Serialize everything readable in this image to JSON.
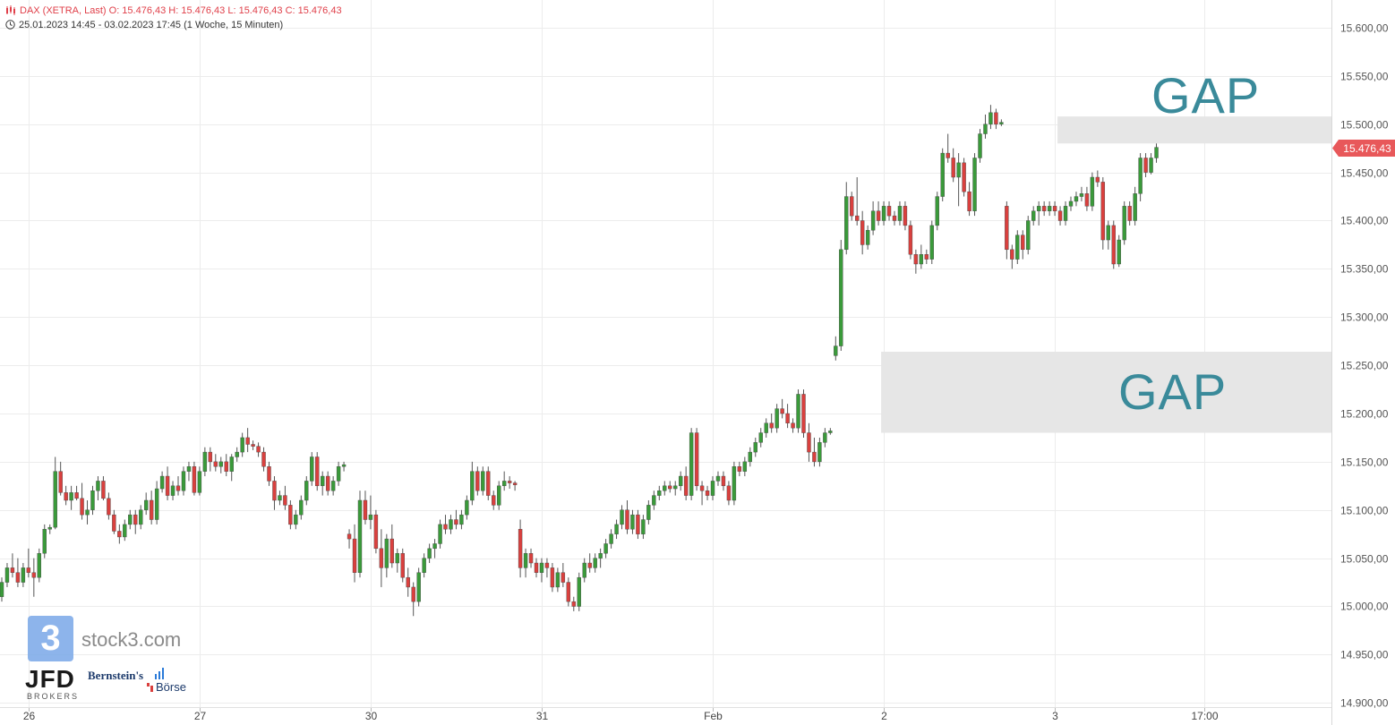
{
  "header": {
    "line1": "DAX (XETRA, Last)  O: 15.476,43  H: 15.476,43  L: 15.476,43  C: 15.476,43",
    "line2": "25.01.2023 14:45 - 03.02.2023 17:45   (1 Woche, 15 Minuten)"
  },
  "annotations": {
    "gap_upper": "GAP",
    "gap_lower": "GAP"
  },
  "logos": {
    "stock3_glyph": "3",
    "stock3_text": "stock3.com",
    "jfd": "JFD",
    "jfd_sub": "BROKERS",
    "bernstein": "Bernstein's",
    "boerse": "Börse"
  },
  "colors": {
    "up": "#3a9a3a",
    "down": "#d9403e",
    "last_price_bg": "#e8585a",
    "gap_fill": "#e6e6e6",
    "gap_text": "#3a8a9a"
  },
  "chart_data": {
    "type": "candlestick",
    "title": "DAX (XETRA, Last)",
    "last_price_label": "15.476,43",
    "ylim": [
      14890,
      15620
    ],
    "y_ticks": [
      {
        "value": 15600,
        "label": "15.600,00"
      },
      {
        "value": 15550,
        "label": "15.550,00"
      },
      {
        "value": 15500,
        "label": "15.500,00"
      },
      {
        "value": 15450,
        "label": "15.450,00"
      },
      {
        "value": 15400,
        "label": "15.400,00"
      },
      {
        "value": 15350,
        "label": "15.350,00"
      },
      {
        "value": 15300,
        "label": "15.300,00"
      },
      {
        "value": 15250,
        "label": "15.250,00"
      },
      {
        "value": 15200,
        "label": "15.200,00"
      },
      {
        "value": 15150,
        "label": "15.150,00"
      },
      {
        "value": 15100,
        "label": "15.100,00"
      },
      {
        "value": 15050,
        "label": "15.050,00"
      },
      {
        "value": 15000,
        "label": "15.000,00"
      },
      {
        "value": 14950,
        "label": "14.950,00"
      },
      {
        "value": 14900,
        "label": "14.900,00"
      }
    ],
    "x_ticks": [
      {
        "label": "26",
        "index": 5
      },
      {
        "label": "27",
        "index": 37
      },
      {
        "label": "30",
        "index": 69
      },
      {
        "label": "31",
        "index": 101
      },
      {
        "label": "Feb",
        "index": 133
      },
      {
        "label": "2",
        "index": 165
      },
      {
        "label": "3",
        "index": 197
      },
      {
        "label": "17:00",
        "index": 225
      }
    ],
    "gaps": [
      {
        "label": "GAP",
        "from_index": 197.5,
        "low": 15480,
        "high": 15508
      },
      {
        "label": "GAP",
        "from_index": 164.5,
        "low": 15180,
        "high": 15264
      }
    ],
    "candles": [
      [
        15010,
        15030,
        15005,
        15025
      ],
      [
        15025,
        15045,
        15020,
        15040
      ],
      [
        15040,
        15055,
        15030,
        15035
      ],
      [
        15035,
        15050,
        15020,
        15025
      ],
      [
        15025,
        15045,
        15020,
        15040
      ],
      [
        15040,
        15060,
        15030,
        15035
      ],
      [
        15035,
        15050,
        15010,
        15030
      ],
      [
        15030,
        15060,
        15025,
        15055
      ],
      [
        15055,
        15085,
        15050,
        15080
      ],
      [
        15080,
        15085,
        15075,
        15082
      ],
      [
        15082,
        15155,
        15080,
        15140
      ],
      [
        15140,
        15150,
        15115,
        15118
      ],
      [
        15118,
        15125,
        15105,
        15110
      ],
      [
        15110,
        15125,
        15100,
        15118
      ],
      [
        15118,
        15125,
        15110,
        15112
      ],
      [
        15112,
        15128,
        15090,
        15095
      ],
      [
        15095,
        15110,
        15085,
        15100
      ],
      [
        15100,
        15125,
        15095,
        15120
      ],
      [
        15120,
        15135,
        15110,
        15130
      ],
      [
        15130,
        15135,
        15110,
        15112
      ],
      [
        15112,
        15118,
        15090,
        15095
      ],
      [
        15095,
        15100,
        15075,
        15078
      ],
      [
        15078,
        15085,
        15065,
        15072
      ],
      [
        15072,
        15090,
        15068,
        15085
      ],
      [
        15085,
        15100,
        15080,
        15095
      ],
      [
        15095,
        15100,
        15075,
        15085
      ],
      [
        15085,
        15105,
        15080,
        15100
      ],
      [
        15100,
        15118,
        15095,
        15110
      ],
      [
        15110,
        15120,
        15085,
        15090
      ],
      [
        15090,
        15130,
        15085,
        15122
      ],
      [
        15122,
        15140,
        15118,
        15135
      ],
      [
        15135,
        15145,
        15110,
        15115
      ],
      [
        15115,
        15130,
        15110,
        15125
      ],
      [
        15125,
        15135,
        15115,
        15120
      ],
      [
        15120,
        15145,
        15115,
        15140
      ],
      [
        15140,
        15150,
        15130,
        15145
      ],
      [
        15145,
        15150,
        15115,
        15118
      ],
      [
        15118,
        15145,
        15115,
        15140
      ],
      [
        15140,
        15165,
        15135,
        15160
      ],
      [
        15160,
        15165,
        15140,
        15150
      ],
      [
        15150,
        15158,
        15140,
        15145
      ],
      [
        15145,
        15155,
        15138,
        15150
      ],
      [
        15150,
        15158,
        15135,
        15140
      ],
      [
        15140,
        15158,
        15130,
        15155
      ],
      [
        15155,
        15165,
        15150,
        15160
      ],
      [
        15160,
        15180,
        15155,
        15175
      ],
      [
        15175,
        15185,
        15160,
        15168
      ],
      [
        15168,
        15172,
        15162,
        15166
      ],
      [
        15166,
        15170,
        15155,
        15160
      ],
      [
        15160,
        15165,
        15140,
        15145
      ],
      [
        15145,
        15150,
        15125,
        15130
      ],
      [
        15130,
        15135,
        15100,
        15110
      ],
      [
        15110,
        15120,
        15105,
        15115
      ],
      [
        15115,
        15125,
        15100,
        15105
      ],
      [
        15105,
        15110,
        15080,
        15085
      ],
      [
        15085,
        15100,
        15080,
        15095
      ],
      [
        15095,
        15115,
        15090,
        15110
      ],
      [
        15110,
        15135,
        15105,
        15130
      ],
      [
        15130,
        15160,
        15125,
        15155
      ],
      [
        15155,
        15160,
        15120,
        15125
      ],
      [
        15125,
        15140,
        15115,
        15135
      ],
      [
        15135,
        15140,
        15115,
        15120
      ],
      [
        15120,
        15135,
        15115,
        15130
      ],
      [
        15130,
        15150,
        15125,
        15145
      ],
      [
        15145,
        15150,
        15140,
        15147
      ],
      [
        15075,
        15080,
        15060,
        15070
      ],
      [
        15070,
        15085,
        15025,
        15035
      ],
      [
        15035,
        15120,
        15030,
        15110
      ],
      [
        15110,
        15120,
        15085,
        15090
      ],
      [
        15090,
        15115,
        15080,
        15095
      ],
      [
        15095,
        15100,
        15055,
        15060
      ],
      [
        15060,
        15080,
        15020,
        15040
      ],
      [
        15040,
        15075,
        15030,
        15070
      ],
      [
        15070,
        15085,
        15040,
        15045
      ],
      [
        15045,
        15060,
        15035,
        15055
      ],
      [
        15055,
        15060,
        15025,
        15030
      ],
      [
        15030,
        15040,
        15010,
        15020
      ],
      [
        15020,
        15025,
        14990,
        15005
      ],
      [
        15005,
        15040,
        15000,
        15035
      ],
      [
        15035,
        15055,
        15030,
        15050
      ],
      [
        15050,
        15065,
        15045,
        15060
      ],
      [
        15060,
        15070,
        15050,
        15065
      ],
      [
        15065,
        15090,
        15060,
        15085
      ],
      [
        15085,
        15095,
        15075,
        15080
      ],
      [
        15080,
        15095,
        15075,
        15090
      ],
      [
        15090,
        15100,
        15080,
        15085
      ],
      [
        15085,
        15100,
        15080,
        15095
      ],
      [
        15095,
        15115,
        15090,
        15110
      ],
      [
        15110,
        15150,
        15105,
        15140
      ],
      [
        15140,
        15145,
        15115,
        15120
      ],
      [
        15120,
        15145,
        15115,
        15140
      ],
      [
        15140,
        15145,
        15110,
        15115
      ],
      [
        15115,
        15120,
        15100,
        15105
      ],
      [
        15105,
        15130,
        15100,
        15125
      ],
      [
        15125,
        15140,
        15120,
        15130
      ],
      [
        15130,
        15135,
        15122,
        15128
      ],
      [
        15128,
        15130,
        15120,
        15126
      ],
      [
        15080,
        15090,
        15030,
        15040
      ],
      [
        15040,
        15060,
        15030,
        15055
      ],
      [
        15055,
        15060,
        15040,
        15045
      ],
      [
        15045,
        15050,
        15030,
        15035
      ],
      [
        15035,
        15050,
        15025,
        15045
      ],
      [
        15045,
        15050,
        15030,
        15040
      ],
      [
        15040,
        15045,
        15015,
        15020
      ],
      [
        15020,
        15040,
        15015,
        15035
      ],
      [
        15035,
        15045,
        15020,
        15025
      ],
      [
        15025,
        15030,
        15000,
        15005
      ],
      [
        15005,
        15010,
        14995,
        15000
      ],
      [
        15000,
        15035,
        14995,
        15030
      ],
      [
        15030,
        15050,
        15025,
        15045
      ],
      [
        15045,
        15055,
        15035,
        15040
      ],
      [
        15040,
        15055,
        15035,
        15050
      ],
      [
        15050,
        15060,
        15040,
        15055
      ],
      [
        15055,
        15070,
        15050,
        15065
      ],
      [
        15065,
        15080,
        15060,
        15075
      ],
      [
        15075,
        15090,
        15070,
        15085
      ],
      [
        15085,
        15105,
        15080,
        15100
      ],
      [
        15100,
        15110,
        15075,
        15080
      ],
      [
        15080,
        15100,
        15075,
        15095
      ],
      [
        15095,
        15100,
        15070,
        15075
      ],
      [
        15075,
        15095,
        15070,
        15090
      ],
      [
        15090,
        15110,
        15085,
        15105
      ],
      [
        15105,
        15120,
        15100,
        15115
      ],
      [
        15115,
        15125,
        15110,
        15120
      ],
      [
        15120,
        15130,
        15115,
        15125
      ],
      [
        15125,
        15130,
        15118,
        15122
      ],
      [
        15122,
        15130,
        15115,
        15125
      ],
      [
        15125,
        15140,
        15120,
        15135
      ],
      [
        15135,
        15145,
        15110,
        15115
      ],
      [
        15115,
        15185,
        15110,
        15180
      ],
      [
        15180,
        15185,
        15120,
        15125
      ],
      [
        15125,
        15130,
        15105,
        15120
      ],
      [
        15120,
        15125,
        15110,
        15115
      ],
      [
        15115,
        15135,
        15110,
        15130
      ],
      [
        15130,
        15140,
        15125,
        15135
      ],
      [
        15135,
        15140,
        15120,
        15125
      ],
      [
        15125,
        15130,
        15105,
        15110
      ],
      [
        15110,
        15150,
        15105,
        15145
      ],
      [
        15145,
        15150,
        15135,
        15140
      ],
      [
        15140,
        15155,
        15135,
        15150
      ],
      [
        15150,
        15165,
        15145,
        15160
      ],
      [
        15160,
        15175,
        15155,
        15170
      ],
      [
        15170,
        15185,
        15165,
        15180
      ],
      [
        15180,
        15195,
        15175,
        15190
      ],
      [
        15190,
        15200,
        15180,
        15185
      ],
      [
        15185,
        15210,
        15180,
        15205
      ],
      [
        15205,
        15215,
        15195,
        15200
      ],
      [
        15200,
        15210,
        15185,
        15190
      ],
      [
        15190,
        15195,
        15180,
        15185
      ],
      [
        15185,
        15225,
        15180,
        15220
      ],
      [
        15220,
        15225,
        15175,
        15180
      ],
      [
        15180,
        15190,
        15150,
        15160
      ],
      [
        15160,
        15175,
        15145,
        15150
      ],
      [
        15150,
        15175,
        15145,
        15170
      ],
      [
        15170,
        15185,
        15165,
        15180
      ],
      [
        15180,
        15185,
        15178,
        15182
      ],
      [
        15260,
        15280,
        15255,
        15270
      ],
      [
        15270,
        15380,
        15265,
        15370
      ],
      [
        15370,
        15440,
        15365,
        15425
      ],
      [
        15425,
        15430,
        15400,
        15405
      ],
      [
        15405,
        15445,
        15395,
        15400
      ],
      [
        15400,
        15410,
        15365,
        15375
      ],
      [
        15375,
        15395,
        15370,
        15390
      ],
      [
        15390,
        15420,
        15385,
        15410
      ],
      [
        15410,
        15420,
        15395,
        15400
      ],
      [
        15400,
        15420,
        15395,
        15415
      ],
      [
        15415,
        15420,
        15400,
        15405
      ],
      [
        15405,
        15410,
        15395,
        15400
      ],
      [
        15400,
        15420,
        15395,
        15415
      ],
      [
        15415,
        15420,
        15390,
        15395
      ],
      [
        15395,
        15400,
        15360,
        15365
      ],
      [
        15365,
        15370,
        15345,
        15355
      ],
      [
        15355,
        15375,
        15350,
        15365
      ],
      [
        15365,
        15370,
        15355,
        15360
      ],
      [
        15360,
        15400,
        15355,
        15395
      ],
      [
        15395,
        15430,
        15390,
        15425
      ],
      [
        15425,
        15475,
        15420,
        15470
      ],
      [
        15470,
        15490,
        15460,
        15465
      ],
      [
        15465,
        15475,
        15440,
        15445
      ],
      [
        15445,
        15470,
        15415,
        15460
      ],
      [
        15460,
        15465,
        15425,
        15430
      ],
      [
        15430,
        15440,
        15405,
        15410
      ],
      [
        15410,
        15470,
        15405,
        15465
      ],
      [
        15465,
        15495,
        15460,
        15490
      ],
      [
        15490,
        15510,
        15485,
        15500
      ],
      [
        15500,
        15520,
        15495,
        15512
      ],
      [
        15512,
        15516,
        15495,
        15500
      ],
      [
        15500,
        15505,
        15498,
        15502
      ],
      [
        15415,
        15420,
        15360,
        15370
      ],
      [
        15370,
        15375,
        15350,
        15360
      ],
      [
        15360,
        15390,
        15355,
        15385
      ],
      [
        15385,
        15390,
        15360,
        15370
      ],
      [
        15370,
        15405,
        15365,
        15400
      ],
      [
        15400,
        15415,
        15395,
        15410
      ],
      [
        15410,
        15420,
        15395,
        15415
      ],
      [
        15415,
        15420,
        15405,
        15410
      ],
      [
        15410,
        15420,
        15405,
        15415
      ],
      [
        15415,
        15420,
        15405,
        15410
      ],
      [
        15410,
        15415,
        15395,
        15400
      ],
      [
        15400,
        15420,
        15395,
        15415
      ],
      [
        15415,
        15425,
        15410,
        15420
      ],
      [
        15420,
        15430,
        15415,
        15425
      ],
      [
        15425,
        15435,
        15420,
        15428
      ],
      [
        15428,
        15435,
        15410,
        15415
      ],
      [
        15415,
        15450,
        15410,
        15445
      ],
      [
        15445,
        15452,
        15435,
        15440
      ],
      [
        15440,
        15445,
        15370,
        15380
      ],
      [
        15380,
        15400,
        15370,
        15395
      ],
      [
        15395,
        15400,
        15350,
        15355
      ],
      [
        15355,
        15385,
        15352,
        15380
      ],
      [
        15380,
        15420,
        15375,
        15415
      ],
      [
        15415,
        15420,
        15395,
        15400
      ],
      [
        15400,
        15435,
        15395,
        15428
      ],
      [
        15428,
        15470,
        15420,
        15465
      ],
      [
        15465,
        15470,
        15445,
        15450
      ],
      [
        15450,
        15470,
        15448,
        15465
      ],
      [
        15465,
        15480,
        15460,
        15476
      ]
    ]
  }
}
